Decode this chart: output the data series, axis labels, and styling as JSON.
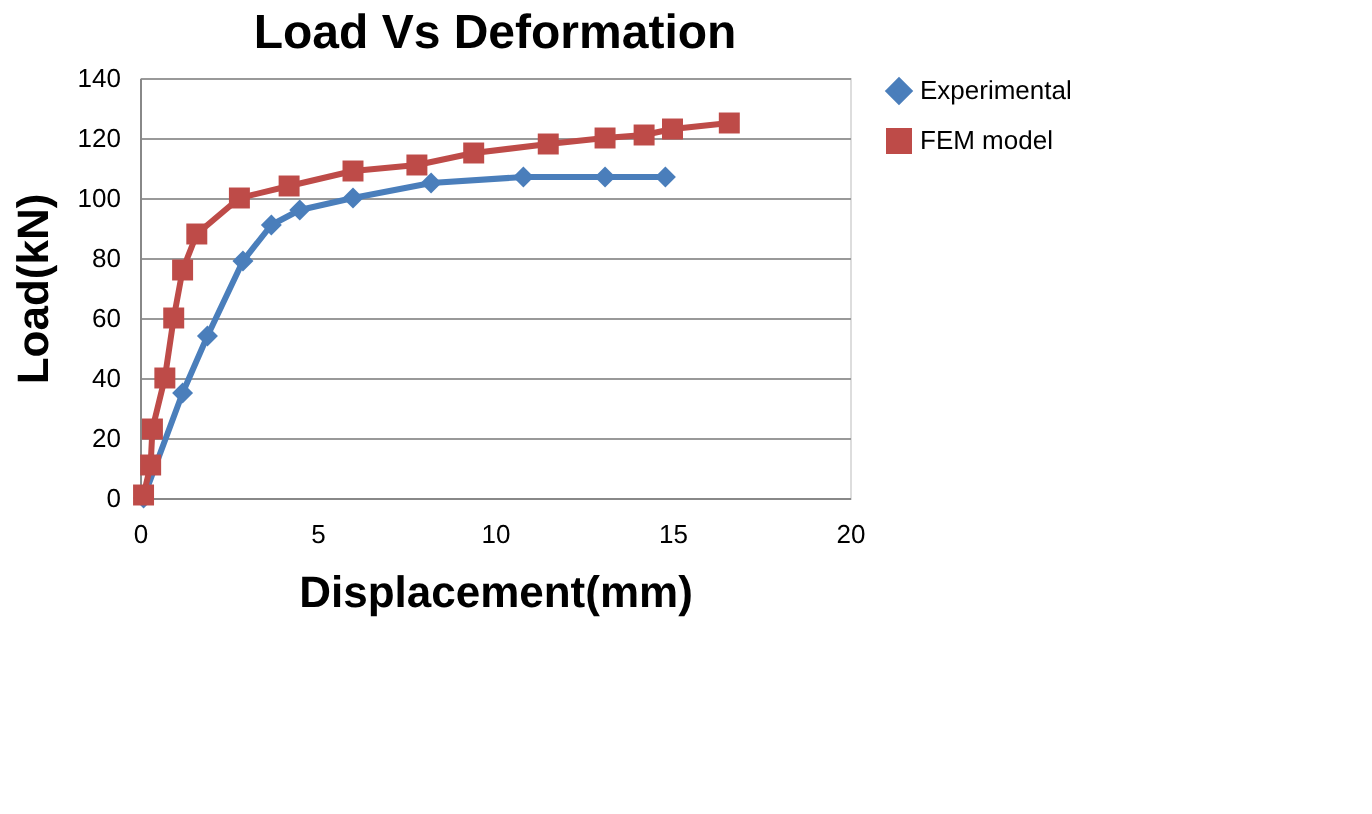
{
  "chart_data": {
    "type": "line",
    "title": "Load Vs Deformation",
    "xlabel": "Displacement(mm)",
    "ylabel": "Load(kN)",
    "xlim": [
      0,
      20
    ],
    "xticks": [
      0,
      5,
      10,
      15,
      20
    ],
    "ylim": [
      0,
      140
    ],
    "yticks": [
      0,
      20,
      40,
      60,
      80,
      100,
      120,
      140
    ],
    "grid": "y",
    "legend": "right",
    "series": [
      {
        "name": "Experimental",
        "color": "#4a7ebb",
        "marker": "diamond",
        "x": [
          0.1,
          0.5,
          1.2,
          1.9,
          2.9,
          3.7,
          4.5,
          6.0,
          8.2,
          10.8,
          13.1,
          14.8
        ],
        "values": [
          0,
          null,
          35,
          54,
          79,
          91,
          96,
          100,
          105,
          107,
          107,
          107
        ]
      },
      {
        "name": "FEM model",
        "color": "#be4b48",
        "marker": "square",
        "x": [
          0.1,
          0.3,
          0.35,
          0.7,
          0.95,
          1.2,
          1.6,
          2.8,
          4.2,
          6.0,
          7.8,
          9.4,
          11.5,
          13.1,
          14.2,
          15.0,
          16.6
        ],
        "values": [
          1,
          11,
          23,
          40,
          60,
          76,
          88,
          100,
          104,
          109,
          111,
          115,
          118,
          120,
          121,
          123,
          125
        ]
      }
    ]
  }
}
